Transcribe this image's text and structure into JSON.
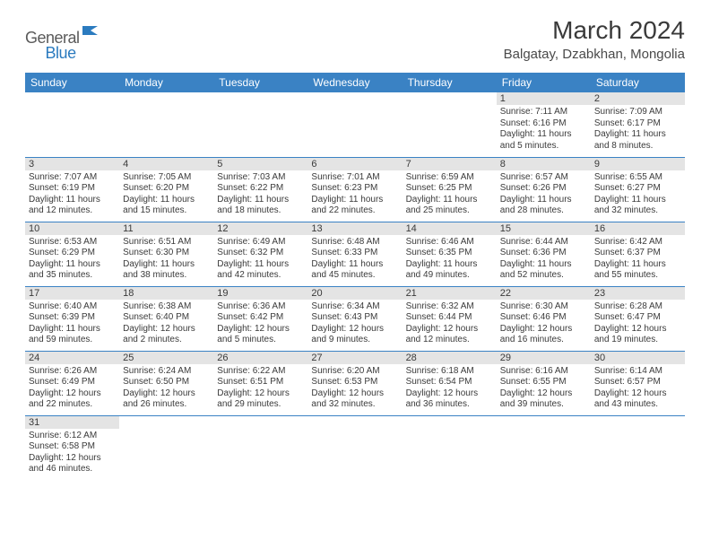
{
  "logo": {
    "word1": "General",
    "word2": "Blue",
    "icon_color": "#2b7bbf"
  },
  "title": "March 2024",
  "location": "Balgatay, Dzabkhan, Mongolia",
  "colors": {
    "header_bg": "#3a82c4",
    "header_fg": "#ffffff",
    "daynum_bg": "#e4e4e4",
    "row_border": "#3a82c4",
    "text": "#3a3a3a"
  },
  "fonts": {
    "title_size": 28,
    "location_size": 15,
    "weekday_size": 12,
    "daynum_size": 11,
    "body_size": 10
  },
  "weekdays": [
    "Sunday",
    "Monday",
    "Tuesday",
    "Wednesday",
    "Thursday",
    "Friday",
    "Saturday"
  ],
  "weeks": [
    [
      {
        "empty": true
      },
      {
        "empty": true
      },
      {
        "empty": true
      },
      {
        "empty": true
      },
      {
        "empty": true
      },
      {
        "num": "1",
        "sunrise": "7:11 AM",
        "sunset": "6:16 PM",
        "daylight": "11 hours and 5 minutes."
      },
      {
        "num": "2",
        "sunrise": "7:09 AM",
        "sunset": "6:17 PM",
        "daylight": "11 hours and 8 minutes."
      }
    ],
    [
      {
        "num": "3",
        "sunrise": "7:07 AM",
        "sunset": "6:19 PM",
        "daylight": "11 hours and 12 minutes."
      },
      {
        "num": "4",
        "sunrise": "7:05 AM",
        "sunset": "6:20 PM",
        "daylight": "11 hours and 15 minutes."
      },
      {
        "num": "5",
        "sunrise": "7:03 AM",
        "sunset": "6:22 PM",
        "daylight": "11 hours and 18 minutes."
      },
      {
        "num": "6",
        "sunrise": "7:01 AM",
        "sunset": "6:23 PM",
        "daylight": "11 hours and 22 minutes."
      },
      {
        "num": "7",
        "sunrise": "6:59 AM",
        "sunset": "6:25 PM",
        "daylight": "11 hours and 25 minutes."
      },
      {
        "num": "8",
        "sunrise": "6:57 AM",
        "sunset": "6:26 PM",
        "daylight": "11 hours and 28 minutes."
      },
      {
        "num": "9",
        "sunrise": "6:55 AM",
        "sunset": "6:27 PM",
        "daylight": "11 hours and 32 minutes."
      }
    ],
    [
      {
        "num": "10",
        "sunrise": "6:53 AM",
        "sunset": "6:29 PM",
        "daylight": "11 hours and 35 minutes."
      },
      {
        "num": "11",
        "sunrise": "6:51 AM",
        "sunset": "6:30 PM",
        "daylight": "11 hours and 38 minutes."
      },
      {
        "num": "12",
        "sunrise": "6:49 AM",
        "sunset": "6:32 PM",
        "daylight": "11 hours and 42 minutes."
      },
      {
        "num": "13",
        "sunrise": "6:48 AM",
        "sunset": "6:33 PM",
        "daylight": "11 hours and 45 minutes."
      },
      {
        "num": "14",
        "sunrise": "6:46 AM",
        "sunset": "6:35 PM",
        "daylight": "11 hours and 49 minutes."
      },
      {
        "num": "15",
        "sunrise": "6:44 AM",
        "sunset": "6:36 PM",
        "daylight": "11 hours and 52 minutes."
      },
      {
        "num": "16",
        "sunrise": "6:42 AM",
        "sunset": "6:37 PM",
        "daylight": "11 hours and 55 minutes."
      }
    ],
    [
      {
        "num": "17",
        "sunrise": "6:40 AM",
        "sunset": "6:39 PM",
        "daylight": "11 hours and 59 minutes."
      },
      {
        "num": "18",
        "sunrise": "6:38 AM",
        "sunset": "6:40 PM",
        "daylight": "12 hours and 2 minutes."
      },
      {
        "num": "19",
        "sunrise": "6:36 AM",
        "sunset": "6:42 PM",
        "daylight": "12 hours and 5 minutes."
      },
      {
        "num": "20",
        "sunrise": "6:34 AM",
        "sunset": "6:43 PM",
        "daylight": "12 hours and 9 minutes."
      },
      {
        "num": "21",
        "sunrise": "6:32 AM",
        "sunset": "6:44 PM",
        "daylight": "12 hours and 12 minutes."
      },
      {
        "num": "22",
        "sunrise": "6:30 AM",
        "sunset": "6:46 PM",
        "daylight": "12 hours and 16 minutes."
      },
      {
        "num": "23",
        "sunrise": "6:28 AM",
        "sunset": "6:47 PM",
        "daylight": "12 hours and 19 minutes."
      }
    ],
    [
      {
        "num": "24",
        "sunrise": "6:26 AM",
        "sunset": "6:49 PM",
        "daylight": "12 hours and 22 minutes."
      },
      {
        "num": "25",
        "sunrise": "6:24 AM",
        "sunset": "6:50 PM",
        "daylight": "12 hours and 26 minutes."
      },
      {
        "num": "26",
        "sunrise": "6:22 AM",
        "sunset": "6:51 PM",
        "daylight": "12 hours and 29 minutes."
      },
      {
        "num": "27",
        "sunrise": "6:20 AM",
        "sunset": "6:53 PM",
        "daylight": "12 hours and 32 minutes."
      },
      {
        "num": "28",
        "sunrise": "6:18 AM",
        "sunset": "6:54 PM",
        "daylight": "12 hours and 36 minutes."
      },
      {
        "num": "29",
        "sunrise": "6:16 AM",
        "sunset": "6:55 PM",
        "daylight": "12 hours and 39 minutes."
      },
      {
        "num": "30",
        "sunrise": "6:14 AM",
        "sunset": "6:57 PM",
        "daylight": "12 hours and 43 minutes."
      }
    ],
    [
      {
        "num": "31",
        "sunrise": "6:12 AM",
        "sunset": "6:58 PM",
        "daylight": "12 hours and 46 minutes."
      },
      {
        "empty": true
      },
      {
        "empty": true
      },
      {
        "empty": true
      },
      {
        "empty": true
      },
      {
        "empty": true
      },
      {
        "empty": true
      }
    ]
  ],
  "labels": {
    "sunrise": "Sunrise: ",
    "sunset": "Sunset: ",
    "daylight": "Daylight: "
  }
}
